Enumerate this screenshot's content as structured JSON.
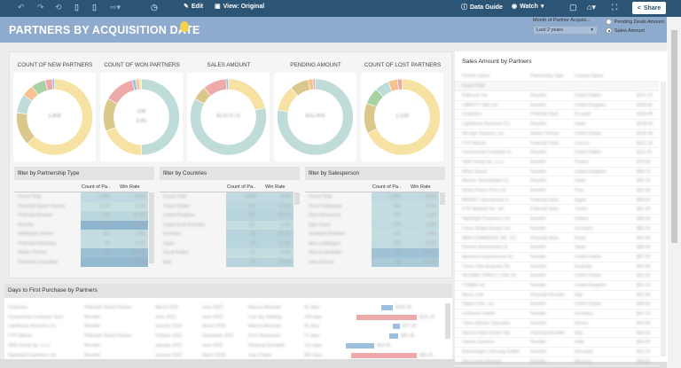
{
  "toolbar": {
    "edit": "Edit",
    "view": "View: Original",
    "data_guide": "Data Guide",
    "watch": "Watch",
    "share": "Share"
  },
  "header": {
    "title": "PARTNERS BY ACQUISITION DATE",
    "filter_label": "Month of Partner Acquisi...",
    "filter_value": "Last 2 years",
    "radio_options": [
      {
        "label": "Pending Deals Amount",
        "selected": false
      },
      {
        "label": "Sales Amount",
        "selected": true
      }
    ]
  },
  "colors": {
    "toolbar": "#2b5475",
    "titlebar": "#8eaacd",
    "yellow": "#f6e2a3",
    "teal": "#bfdcd9",
    "tan": "#d9c78c",
    "pink": "#eeaaaa",
    "orange": "#f6c28f",
    "green": "#a7d2a2",
    "blue": "#9cbfe0"
  },
  "donuts": [
    {
      "label": "COUNT OF NEW PARTNERS",
      "center": "1,808",
      "sub": "",
      "slices": [
        {
          "c": "yellow",
          "v": 62
        },
        {
          "c": "tan",
          "v": 14
        },
        {
          "c": "teal",
          "v": 8
        },
        {
          "c": "orange",
          "v": 5
        },
        {
          "c": "green",
          "v": 6
        },
        {
          "c": "pink",
          "v": 3
        },
        {
          "c": "blue",
          "v": 1
        }
      ]
    },
    {
      "label": "COUNT OF WON PARTNERS",
      "center": "138",
      "sub": "8.0%",
      "slices": [
        {
          "c": "teal",
          "v": 50
        },
        {
          "c": "yellow",
          "v": 19
        },
        {
          "c": "tan",
          "v": 14
        },
        {
          "c": "pink",
          "v": 13
        },
        {
          "c": "blue",
          "v": 1.5
        },
        {
          "c": "orange",
          "v": 1.5
        },
        {
          "c": "yellow",
          "v": 1
        }
      ]
    },
    {
      "label": "SALES AMOUNT",
      "center": "$2,673.75",
      "sub": "",
      "slices": [
        {
          "c": "yellow",
          "v": 21
        },
        {
          "c": "teal",
          "v": 62
        },
        {
          "c": "tan",
          "v": 6
        },
        {
          "c": "pink",
          "v": 10
        },
        {
          "c": "blue",
          "v": 1
        }
      ]
    },
    {
      "label": "PENDING AMOUNT",
      "center": "$32,408",
      "sub": "",
      "slices": [
        {
          "c": "teal",
          "v": 78
        },
        {
          "c": "yellow",
          "v": 11
        },
        {
          "c": "tan",
          "v": 8
        },
        {
          "c": "orange",
          "v": 2
        },
        {
          "c": "pink",
          "v": 1
        }
      ]
    },
    {
      "label": "COUNT OF LOST PARTNERS",
      "center": "1,226",
      "sub": "",
      "slices": [
        {
          "c": "yellow",
          "v": 68
        },
        {
          "c": "tan",
          "v": 13
        },
        {
          "c": "green",
          "v": 7
        },
        {
          "c": "teal",
          "v": 6
        },
        {
          "c": "orange",
          "v": 4
        },
        {
          "c": "pink",
          "v": 2
        }
      ]
    }
  ],
  "filters": [
    {
      "title": "filter by Partnership Type",
      "col1": "Count of Pa..",
      "col2": "Win Rate",
      "rows": [
        [
          "Grand Total",
          "1,808",
          "8.0%",
          0.3
        ],
        [
          "Potential Starter Partner",
          "1,170",
          "2.5%",
          0.2
        ],
        [
          "Potential Reseller",
          "233",
          "12.3%",
          0.35
        ],
        [
          "Reseller",
          "156",
          "46.2%",
          0.9
        ],
        [
          "Withdrawn partner",
          "103",
          "1.9%",
          0.25
        ],
        [
          "Potential Distributor",
          "54",
          "3.7%",
          0.25
        ],
        [
          "Starter Partner",
          "40",
          "55.0%",
          0.75
        ],
        [
          "Potential Consultant",
          "11",
          "63.6%",
          0.85
        ]
      ]
    },
    {
      "title": "filter by Countries",
      "col1": "Count of Pa..",
      "col2": "Win Rate",
      "rows": [
        [
          "Grand Total",
          "1,808",
          "8.0%",
          0.3
        ],
        [
          "United States",
          "372",
          "12.1%",
          0.35
        ],
        [
          "United Kingdom",
          "185",
          "15.0%",
          0.4
        ],
        [
          "United Arab Emirates",
          "117",
          "2.6%",
          0.25
        ],
        [
          "Germany",
          "92",
          "15.2%",
          0.4
        ],
        [
          "Spain",
          "84",
          "13.0%",
          0.38
        ],
        [
          "Saudi Arabia",
          "57",
          "3.5%",
          0.25
        ],
        [
          "Italy",
          "54",
          "15.6%",
          0.4
        ]
      ]
    },
    {
      "title": "filter by Salesperson",
      "col1": "Count of Pa..",
      "col2": "Win Rate",
      "rows": [
        [
          "Grand Total",
          "1,808",
          "8.0%",
          0.3
        ],
        [
          "Pavel Kalinowski",
          "203",
          "3.4%",
          0.25
        ],
        [
          "Drive Beaumont",
          "202",
          "4.0%",
          0.25
        ],
        [
          "Egor Kozel",
          "174",
          "5.8%",
          0.27
        ],
        [
          "Shabaan Elmadeh",
          "143",
          "2.8%",
          0.25
        ],
        [
          "Max Lundbagen",
          "132",
          "9.1%",
          0.28
        ],
        [
          "Marcos Alvarado",
          "72",
          "46.2%",
          0.7
        ],
        [
          "Julia Holmes",
          "68",
          "37.8%",
          0.55
        ]
      ]
    }
  ],
  "days": {
    "title": "Days to First Purchase by Partners",
    "rows": [
      [
        "Graphane",
        "Potential Starter Partner",
        "March 2023",
        "June 2023",
        "Marcos Alvarado",
        "91 days",
        "$166.46",
        0.06,
        "blue"
      ],
      [
        "Commercial Computer Tech..",
        "Reseller",
        "June 2022",
        "June 2023",
        "Lisa Jay Sirleting",
        "379 days",
        "$111.26",
        0.52,
        "pink"
      ],
      [
        "Lighthouse Business Co.",
        "Reseller",
        "January 2023",
        "March 2023",
        "Marcos Alvarado",
        "45 days",
        "$77.34",
        0.02,
        "blue"
      ],
      [
        "FYP Giftsoft",
        "Potential Starter Partner",
        "October 2022",
        "December 2022",
        "Drive Beaumont",
        "71 days",
        "$65.36",
        0.03,
        "blue"
      ],
      [
        "SMS Group Sp. z.o.o",
        "Reseller",
        "January 2022",
        "June 2022",
        "Shabaan Elmadeh",
        "161 days",
        "$64.36",
        0.22,
        "blue"
      ],
      [
        "Nightsight Dynamics Ltd.",
        "Reseller",
        "January 2022",
        "March 2023",
        "Ivan Chapin",
        "450 days",
        "$66.36",
        0.57,
        "pink"
      ]
    ]
  },
  "right": {
    "title": "Sales Amount by Partners",
    "headers": [
      "Partner Name",
      "Partnership Type",
      "Country Name"
    ],
    "grand_total": "Grand Total",
    "rows": [
      [
        "Kalbrook Ltd.",
        "Reseller",
        "United States",
        "$311.14"
      ],
      [
        "LIBERTY Hills Ltd.",
        "Reseller",
        "United Kingdom",
        "$209.86"
      ],
      [
        "Graphane",
        "Potential Start..",
        "Ecuador",
        "$166.46"
      ],
      [
        "Lighthouse Business Co.",
        "Reseller",
        "Spain",
        "$158.44"
      ],
      [
        "Sth Age Systems, Inc.",
        "Starter Partner",
        "United States",
        "$135.48"
      ],
      [
        "FYP Giftsoft",
        "Potential Start..",
        "Greece",
        "$121.36"
      ],
      [
        "Commercial Computer D..",
        "Reseller",
        "United States",
        "$111.26"
      ],
      [
        "SMS Group Sp. z.o.o",
        "Reseller",
        "Poland",
        "$70.66"
      ],
      [
        "White House",
        "Reseller",
        "United Kingdom",
        "$68.14"
      ],
      [
        "Marcus Technologies S..",
        "Reseller",
        "Spain",
        "$66.16"
      ],
      [
        "Smart House Peru Ltd.",
        "Reseller",
        "Peru",
        "$65.26"
      ],
      [
        "BRIGHT International S..",
        "Potential Start..",
        "Egypt",
        "$64.60"
      ],
      [
        "KTK Network Inc. SA",
        "Potential Start..",
        "Turkey",
        "$61.46"
      ],
      [
        "Nightsight Dynamics Ltd.",
        "Reseller",
        "Ireland",
        "$66.36"
      ],
      [
        "Future Bright Design Ltd.",
        "Reseller",
        "Germany",
        "$65.36"
      ],
      [
        "MBA COMMERCE INT. CO.",
        "Potential Start..",
        "Brazil",
        "$62.60"
      ],
      [
        "Karmen Astronomica B.",
        "Reseller",
        "Spain",
        "$58.45"
      ],
      [
        "Apostech Experiences Inc.",
        "Reseller",
        "United States",
        "$57.00"
      ],
      [
        "Clover One Australia Pty",
        "Reseller",
        "Australia",
        "$55.40"
      ],
      [
        "REDWAY DIRECT USA, IN..",
        "Reseller",
        "United States",
        "$55.20"
      ],
      [
        "TYMBA Ltd.",
        "Reseller",
        "United Kingdom",
        "$53.14"
      ],
      [
        "Marzo Soft",
        "Potential Reseller",
        "Italy",
        "$52.46"
      ],
      [
        "Digital Cites, Inc.",
        "Reseller",
        "United States",
        "$49.60"
      ],
      [
        "Lichtwerk GmbH",
        "Reseller",
        "Germany",
        "$47.14"
      ],
      [
        "Tribon Mexico Operation",
        "Reseller",
        "Mexico",
        "$44.60"
      ],
      [
        "Speech Data GmbH Top",
        "Potential Reseller",
        "Italy",
        "$44.00"
      ],
      [
        "Sakura Systems",
        "Reseller",
        "India",
        "$42.60"
      ],
      [
        "Bahnsteiger Lieferung GmbH",
        "Reseller",
        "Germany",
        "$41.10"
      ],
      [
        "Intercounty Network",
        "Reseller",
        "Morocco",
        "$40.66"
      ]
    ]
  }
}
